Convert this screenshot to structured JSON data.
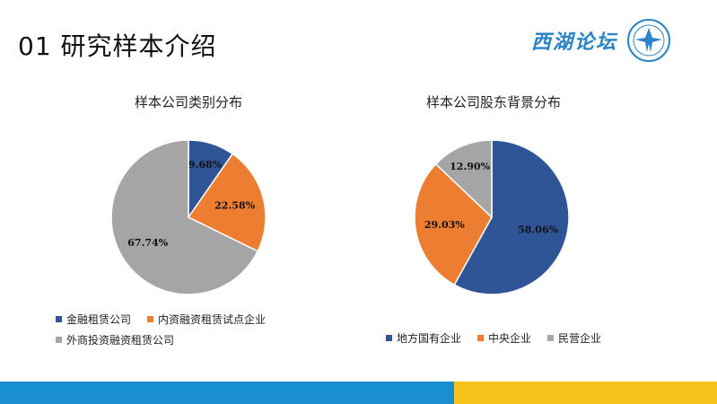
{
  "page": {
    "title": "01  研究样本介绍"
  },
  "logo": {
    "text": "西湖论坛"
  },
  "colors": {
    "blue": "#2f5597",
    "orange": "#ed7d31",
    "gray": "#a5a5a5",
    "accent": "#1a8fd0",
    "gold": "#f7c21b"
  },
  "chart_data": [
    {
      "type": "pie",
      "title": "样本公司类别分布",
      "categories": [
        "金融租赁公司",
        "内资融资租赁试点企业",
        "外商投资融资租赁公司"
      ],
      "values": [
        9.68,
        22.58,
        67.74
      ],
      "labels": [
        "9.68%",
        "22.58%",
        "67.74%"
      ],
      "colors": [
        "#2f5597",
        "#ed7d31",
        "#a5a5a5"
      ],
      "legend": "bottom"
    },
    {
      "type": "pie",
      "title": "样本公司股东背景分布",
      "categories": [
        "地方国有企业",
        "中央企业",
        "民营企业"
      ],
      "values": [
        58.06,
        29.03,
        12.9
      ],
      "labels": [
        "58.06%",
        "29.03%",
        "12.90%"
      ],
      "colors": [
        "#2f5597",
        "#ed7d31",
        "#a5a5a5"
      ],
      "legend": "bottom"
    }
  ]
}
